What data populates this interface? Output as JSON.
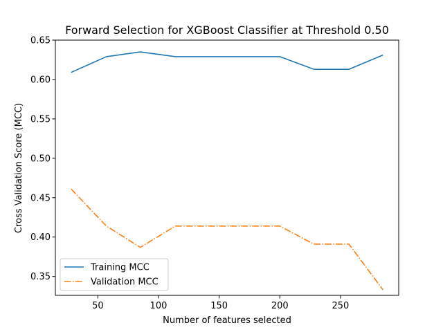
{
  "chart_data": {
    "type": "line",
    "title": "Forward Selection for XGBoost Classifier at Threshold 0.50",
    "xlabel": "Number of features selected",
    "ylabel": "Cross Validation Score (MCC)",
    "xlim": [
      15,
      298
    ],
    "ylim": [
      0.326,
      0.65
    ],
    "xticks": [
      50,
      100,
      150,
      200,
      250
    ],
    "xtick_labels": [
      "50",
      "100",
      "150",
      "200",
      "250"
    ],
    "yticks": [
      0.35,
      0.4,
      0.45,
      0.5,
      0.55,
      0.6,
      0.65
    ],
    "ytick_labels": [
      "0.35",
      "0.40",
      "0.45",
      "0.50",
      "0.55",
      "0.60",
      "0.65"
    ],
    "grid": false,
    "legend_position": "lower-left",
    "x": [
      28,
      57,
      85,
      114,
      142,
      171,
      200,
      228,
      257,
      285
    ],
    "series": [
      {
        "name": "Training MCC",
        "color": "#1f77b4",
        "dash": "solid",
        "values": [
          0.609,
          0.629,
          0.635,
          0.629,
          0.629,
          0.629,
          0.629,
          0.613,
          0.613,
          0.631
        ]
      },
      {
        "name": "Validation MCC",
        "color": "#ff7f0e",
        "dash": "dashdot",
        "values": [
          0.461,
          0.414,
          0.387,
          0.414,
          0.414,
          0.414,
          0.414,
          0.391,
          0.391,
          0.333
        ]
      }
    ]
  }
}
